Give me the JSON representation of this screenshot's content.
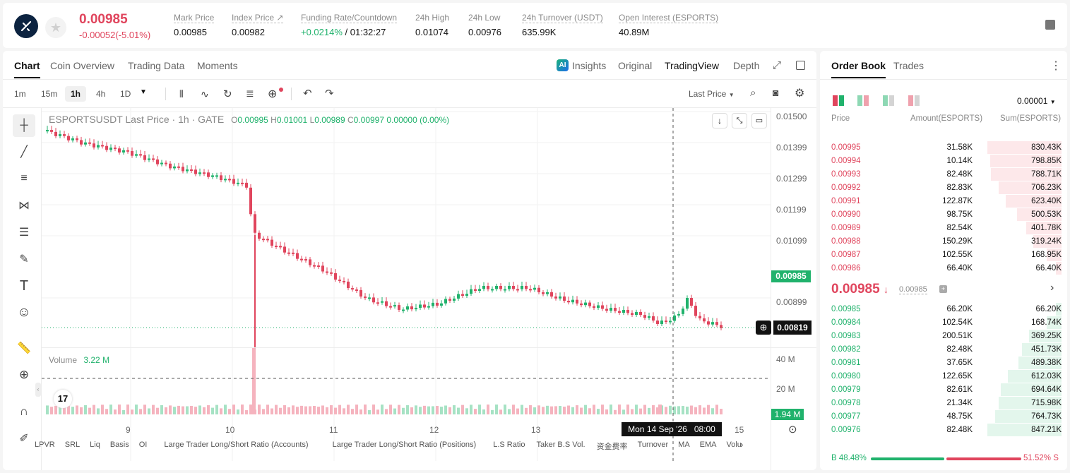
{
  "header": {
    "last_price": "0.00985",
    "change": "-0.00052(-5.01%)",
    "stats": [
      {
        "label": "Mark Price",
        "value": "0.00985"
      },
      {
        "label": "Index Price ↗",
        "value": "0.00982"
      },
      {
        "label": "Funding Rate/Countdown",
        "value_green": "+0.0214%",
        "value": " / 01:32:27"
      },
      {
        "label": "24h High",
        "value": "0.01074"
      },
      {
        "label": "24h Low",
        "value": "0.00976"
      },
      {
        "label": "24h Turnover (USDT)",
        "value": "635.99K"
      },
      {
        "label": "Open Interest (ESPORTS)",
        "value": "40.89M"
      }
    ]
  },
  "chart_tabs": [
    "Chart",
    "Coin Overview",
    "Trading Data",
    "Moments"
  ],
  "view_tabs": [
    "Insights",
    "Original",
    "TradingView",
    "Depth"
  ],
  "timeframes": [
    "1m",
    "15m",
    "1h",
    "4h",
    "1D"
  ],
  "price_type": "Last Price",
  "legend": {
    "symbol": "ESPORTSUSDT Last Price · 1h · GATE",
    "o": "0.00995",
    "h": "0.01001",
    "l": "0.00989",
    "c": "0.00997",
    "chg": "0.00000 (0.00%)",
    "o_lbl": "O",
    "h_lbl": "H",
    "l_lbl": "L",
    "c_lbl": "C"
  },
  "volume": {
    "label": "Volume",
    "value": "3.22 M"
  },
  "y_axis": [
    "0.01500",
    "0.01399",
    "0.01299",
    "0.01199",
    "0.01099",
    "0.00899"
  ],
  "vol_axis": [
    "40 M",
    "20 M"
  ],
  "x_axis": [
    "9",
    "10",
    "11",
    "12",
    "13",
    "15"
  ],
  "price_tag": "0.00985",
  "low_tag": "0.00819",
  "vol_tag": "1.94 M",
  "crosshair_time": "Mon 14 Sep '26   08:00",
  "indicators": [
    "LPVR",
    "SRL",
    "Liq",
    "Basis",
    "OI",
    "Large Trader Long/Short Ratio (Accounts)",
    "Large Trader Long/Short Ratio (Positions)",
    "L.S Ratio",
    "Taker B.S Vol.",
    "资金费率",
    "Turnover",
    "MA",
    "EMA",
    "Volu"
  ],
  "orderbook": {
    "tabs": [
      "Order Book",
      "Trades"
    ],
    "precision": "0.00001",
    "headers": [
      "Price",
      "Amount(ESPORTS)",
      "Sum(ESPORTS)"
    ],
    "asks": [
      {
        "price": "0.00995",
        "amount": "31.58K",
        "sum": "830.43K",
        "depth": 1.0
      },
      {
        "price": "0.00994",
        "amount": "10.14K",
        "sum": "798.85K",
        "depth": 0.96
      },
      {
        "price": "0.00993",
        "amount": "82.48K",
        "sum": "788.71K",
        "depth": 0.95
      },
      {
        "price": "0.00992",
        "amount": "82.83K",
        "sum": "706.23K",
        "depth": 0.85
      },
      {
        "price": "0.00991",
        "amount": "122.87K",
        "sum": "623.40K",
        "depth": 0.75
      },
      {
        "price": "0.00990",
        "amount": "98.75K",
        "sum": "500.53K",
        "depth": 0.6
      },
      {
        "price": "0.00989",
        "amount": "82.54K",
        "sum": "401.78K",
        "depth": 0.48
      },
      {
        "price": "0.00988",
        "amount": "150.29K",
        "sum": "319.24K",
        "depth": 0.38
      },
      {
        "price": "0.00987",
        "amount": "102.55K",
        "sum": "168.95K",
        "depth": 0.2
      },
      {
        "price": "0.00986",
        "amount": "66.40K",
        "sum": "66.40K",
        "depth": 0.08
      }
    ],
    "mid_price": "0.00985",
    "mid_mark": "0.00985",
    "bids": [
      {
        "price": "0.00985",
        "amount": "66.20K",
        "sum": "66.20K",
        "depth": 0.08
      },
      {
        "price": "0.00984",
        "amount": "102.54K",
        "sum": "168.74K",
        "depth": 0.2
      },
      {
        "price": "0.00983",
        "amount": "200.51K",
        "sum": "369.25K",
        "depth": 0.44
      },
      {
        "price": "0.00982",
        "amount": "82.48K",
        "sum": "451.73K",
        "depth": 0.53
      },
      {
        "price": "0.00981",
        "amount": "37.65K",
        "sum": "489.38K",
        "depth": 0.58
      },
      {
        "price": "0.00980",
        "amount": "122.65K",
        "sum": "612.03K",
        "depth": 0.72
      },
      {
        "price": "0.00979",
        "amount": "82.61K",
        "sum": "694.64K",
        "depth": 0.82
      },
      {
        "price": "0.00978",
        "amount": "21.34K",
        "sum": "715.98K",
        "depth": 0.85
      },
      {
        "price": "0.00977",
        "amount": "48.75K",
        "sum": "764.73K",
        "depth": 0.9
      },
      {
        "price": "0.00976",
        "amount": "82.48K",
        "sum": "847.21K",
        "depth": 1.0
      }
    ],
    "buy_ratio": "48.48%",
    "sell_ratio": "51.52%",
    "buy_label": "B",
    "sell_label": "S"
  },
  "colors": {
    "up": "#20b26c",
    "down": "#e0455d"
  }
}
